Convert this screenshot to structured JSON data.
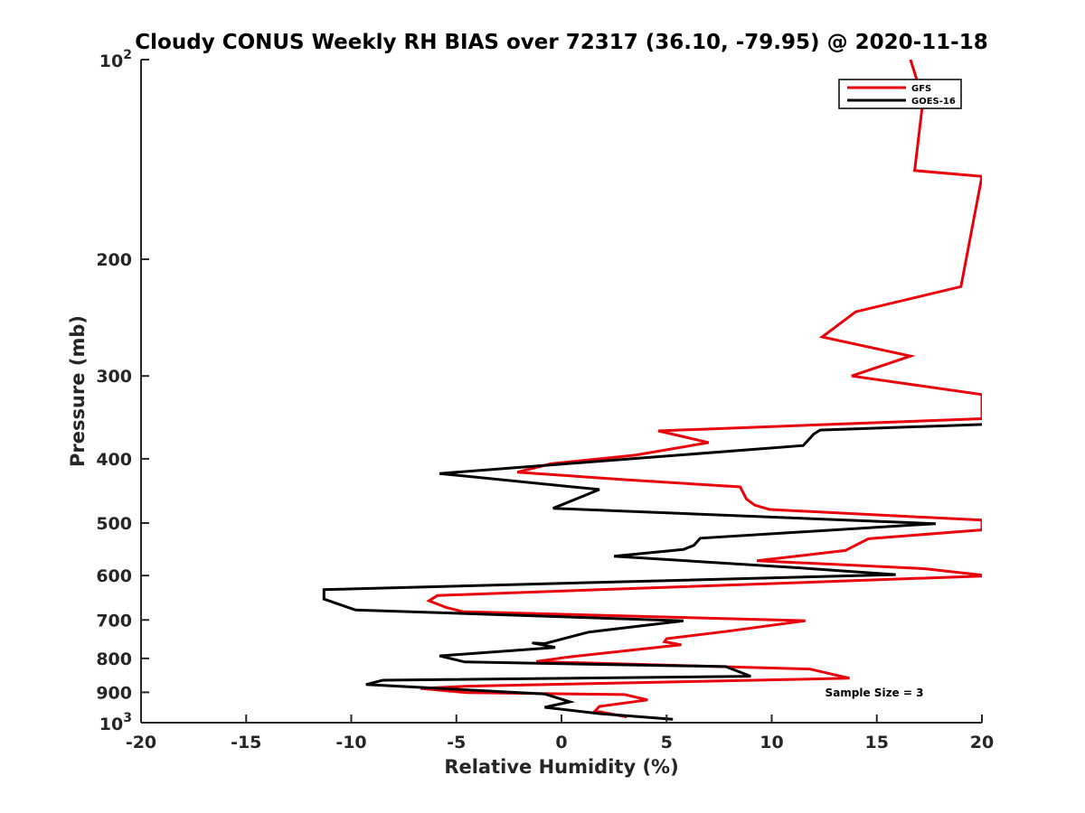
{
  "chart_data": {
    "type": "line",
    "title": "Cloudy CONUS Weekly RH BIAS over 72317 (36.10, -79.95) @ 2020-11-18",
    "xlabel": "Relative Humidity (%)",
    "ylabel": "Pressure (mb)",
    "xlim": [
      -20,
      20
    ],
    "ylim": [
      100,
      1000
    ],
    "y_scale": "log",
    "y_reversed": true,
    "x_ticks": [
      "-20",
      "-15",
      "-10",
      "-5",
      "0",
      "5",
      "10",
      "15",
      "20"
    ],
    "y_ticks": [
      {
        "value": 100,
        "base": "10",
        "exp": "2"
      },
      {
        "value": 200,
        "text": "200"
      },
      {
        "value": 300,
        "text": "300"
      },
      {
        "value": 400,
        "text": "400"
      },
      {
        "value": 500,
        "text": "500"
      },
      {
        "value": 600,
        "text": "600"
      },
      {
        "value": 700,
        "text": "700"
      },
      {
        "value": 800,
        "text": "800"
      },
      {
        "value": 900,
        "text": "900"
      },
      {
        "value": 1000,
        "base": "10",
        "exp": "3"
      }
    ],
    "legend_position": "top-right",
    "grid": false,
    "annotation": "Sample Size = 3",
    "series": [
      {
        "name": "GFS",
        "color": "#e8000b",
        "points": [
          [
            16.6,
            100
          ],
          [
            17.2,
            115
          ],
          [
            16.8,
            147
          ],
          [
            20.2,
            150
          ],
          [
            19.0,
            220
          ],
          [
            14.0,
            240
          ],
          [
            12.4,
            262
          ],
          [
            16.6,
            280
          ],
          [
            13.8,
            300
          ],
          [
            20.2,
            320
          ],
          [
            20.2,
            348
          ],
          [
            4.6,
            363
          ],
          [
            7.0,
            378
          ],
          [
            3.5,
            395
          ],
          [
            -0.5,
            407
          ],
          [
            -2.1,
            419
          ],
          [
            3.0,
            430
          ],
          [
            8.5,
            441
          ],
          [
            8.8,
            460
          ],
          [
            9.2,
            470
          ],
          [
            9.9,
            477
          ],
          [
            20.2,
            495
          ],
          [
            20.2,
            512
          ],
          [
            14.6,
            528
          ],
          [
            13.5,
            550
          ],
          [
            9.3,
            570
          ],
          [
            13.0,
            577
          ],
          [
            17.3,
            586
          ],
          [
            20.2,
            599
          ],
          [
            20.2,
            601
          ],
          [
            -5.9,
            643
          ],
          [
            -6.3,
            655
          ],
          [
            -5.5,
            670
          ],
          [
            -4.7,
            680
          ],
          [
            11.6,
            702
          ],
          [
            7.9,
            728
          ],
          [
            5.0,
            747
          ],
          [
            4.9,
            755
          ],
          [
            5.7,
            763
          ],
          [
            0.2,
            797
          ],
          [
            -1.2,
            809
          ],
          [
            11.8,
            830
          ],
          [
            13.7,
            857
          ],
          [
            -4.5,
            881
          ],
          [
            -6.7,
            888
          ],
          [
            -4.5,
            901
          ],
          [
            3.0,
            907
          ],
          [
            4.1,
            924
          ],
          [
            1.8,
            945
          ],
          [
            1.6,
            960
          ],
          [
            3.1,
            980
          ]
        ]
      },
      {
        "name": "GOES-16",
        "color": "#000000",
        "points": [
          [
            20.2,
            355
          ],
          [
            12.3,
            362
          ],
          [
            12.0,
            367
          ],
          [
            11.5,
            382
          ],
          [
            -5.8,
            421
          ],
          [
            1.8,
            445
          ],
          [
            -0.4,
            475
          ],
          [
            17.8,
            501
          ],
          [
            6.6,
            527
          ],
          [
            6.3,
            540
          ],
          [
            5.8,
            548
          ],
          [
            2.5,
            561
          ],
          [
            11.6,
            585
          ],
          [
            15.9,
            598
          ],
          [
            -11.3,
            630
          ],
          [
            -11.3,
            651
          ],
          [
            -9.8,
            676
          ],
          [
            5.8,
            702
          ],
          [
            1.3,
            730
          ],
          [
            -0.8,
            760
          ],
          [
            -1.4,
            758
          ],
          [
            -0.3,
            770
          ],
          [
            -5.8,
            793
          ],
          [
            -4.6,
            810
          ],
          [
            7.8,
            823
          ],
          [
            9.0,
            851
          ],
          [
            -8.5,
            863
          ],
          [
            -9.3,
            876
          ],
          [
            -0.8,
            905
          ],
          [
            0.4,
            930
          ],
          [
            -0.8,
            948
          ],
          [
            1.8,
            969
          ],
          [
            5.3,
            988
          ]
        ]
      }
    ]
  }
}
